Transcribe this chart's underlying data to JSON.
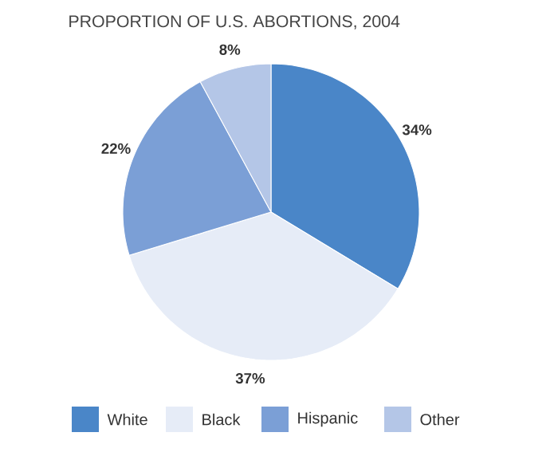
{
  "chart_data": {
    "type": "pie",
    "title": "PROPORTION OF U.S. ABORTIONS, 2004",
    "categories": [
      "White",
      "Black",
      "Hispanic",
      "Other"
    ],
    "values": [
      34,
      37,
      22,
      8
    ],
    "colors": [
      "#4a86c8",
      "#e6ecf7",
      "#7b9fd6",
      "#b4c6e7"
    ],
    "value_labels": [
      "34%",
      "37%",
      "22%",
      "8%"
    ],
    "legend": "bottom"
  }
}
